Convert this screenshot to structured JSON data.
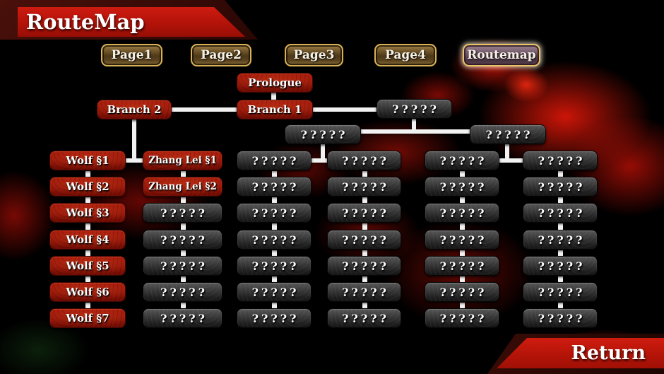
{
  "header": {
    "title": "RouteMap"
  },
  "tabs": [
    {
      "label": "Page1",
      "active": false
    },
    {
      "label": "Page2",
      "active": false
    },
    {
      "label": "Page3",
      "active": false
    },
    {
      "label": "Page4",
      "active": false
    },
    {
      "label": "Routemap",
      "active": true
    }
  ],
  "footer": {
    "return_label": "Return"
  },
  "colors": {
    "banner_red": "#c0170c",
    "node_red": "#8d1207",
    "node_gray": "#3a3a3a",
    "connector_white": "#f2f2f2",
    "tab_gold_border": "#d9b258",
    "tab_active_fill": "#74596a",
    "background": "#000000"
  },
  "route_map": {
    "special_nodes": [
      {
        "id": "prologue",
        "label": "Prologue",
        "style": "red"
      },
      {
        "id": "branch-2",
        "label": "Branch 2",
        "style": "red"
      },
      {
        "id": "branch-1",
        "label": "Branch 1",
        "style": "red"
      },
      {
        "id": "unknown-hub-top",
        "label": "?????",
        "style": "gray"
      },
      {
        "id": "unknown-hub-left",
        "label": "?????",
        "style": "gray"
      },
      {
        "id": "unknown-hub-right",
        "label": "?????",
        "style": "gray"
      }
    ],
    "columns": [
      {
        "id": "wolf",
        "cells": [
          {
            "label": "Wolf §1",
            "style": "red"
          },
          {
            "label": "Wolf §2",
            "style": "red"
          },
          {
            "label": "Wolf §3",
            "style": "red"
          },
          {
            "label": "Wolf §4",
            "style": "red"
          },
          {
            "label": "Wolf §5",
            "style": "red"
          },
          {
            "label": "Wolf §6",
            "style": "red"
          },
          {
            "label": "Wolf §7",
            "style": "red"
          }
        ]
      },
      {
        "id": "zhang-lei",
        "cells": [
          {
            "label": "Zhang Lei §1",
            "style": "red"
          },
          {
            "label": "Zhang Lei §2",
            "style": "red"
          },
          {
            "label": "?????",
            "style": "gray"
          },
          {
            "label": "?????",
            "style": "gray"
          },
          {
            "label": "?????",
            "style": "gray"
          },
          {
            "label": "?????",
            "style": "gray"
          },
          {
            "label": "?????",
            "style": "gray"
          }
        ]
      },
      {
        "id": "unknown-3",
        "cells": [
          {
            "label": "?????",
            "style": "gray"
          },
          {
            "label": "?????",
            "style": "gray"
          },
          {
            "label": "?????",
            "style": "gray"
          },
          {
            "label": "?????",
            "style": "gray"
          },
          {
            "label": "?????",
            "style": "gray"
          },
          {
            "label": "?????",
            "style": "gray"
          },
          {
            "label": "?????",
            "style": "gray"
          }
        ]
      },
      {
        "id": "unknown-4",
        "cells": [
          {
            "label": "?????",
            "style": "gray"
          },
          {
            "label": "?????",
            "style": "gray"
          },
          {
            "label": "?????",
            "style": "gray"
          },
          {
            "label": "?????",
            "style": "gray"
          },
          {
            "label": "?????",
            "style": "gray"
          },
          {
            "label": "?????",
            "style": "gray"
          },
          {
            "label": "?????",
            "style": "gray"
          }
        ]
      },
      {
        "id": "unknown-5",
        "cells": [
          {
            "label": "?????",
            "style": "gray"
          },
          {
            "label": "?????",
            "style": "gray"
          },
          {
            "label": "?????",
            "style": "gray"
          },
          {
            "label": "?????",
            "style": "gray"
          },
          {
            "label": "?????",
            "style": "gray"
          },
          {
            "label": "?????",
            "style": "gray"
          },
          {
            "label": "?????",
            "style": "gray"
          }
        ]
      },
      {
        "id": "unknown-6",
        "cells": [
          {
            "label": "?????",
            "style": "gray"
          },
          {
            "label": "?????",
            "style": "gray"
          },
          {
            "label": "?????",
            "style": "gray"
          },
          {
            "label": "?????",
            "style": "gray"
          },
          {
            "label": "?????",
            "style": "gray"
          },
          {
            "label": "?????",
            "style": "gray"
          },
          {
            "label": "?????",
            "style": "gray"
          }
        ]
      }
    ]
  }
}
